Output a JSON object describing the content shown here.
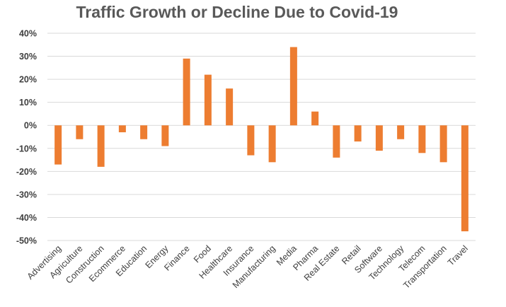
{
  "chart_data": {
    "type": "bar",
    "title": "Traffic Growth or Decline Due to Covid-19",
    "xlabel": "",
    "ylabel": "",
    "categories": [
      "Advertising",
      "Agriculture",
      "Construction",
      "Ecommerce",
      "Education",
      "Energy",
      "Finance",
      "Food",
      "Healthcare",
      "Insurance",
      "Manufacturing",
      "Media",
      "Pharma",
      "Real Estate",
      "Retail",
      "Software",
      "Technology",
      "Telecom",
      "Transportation",
      "Travel"
    ],
    "values": [
      -17,
      -6,
      -18,
      -3,
      -6,
      -9,
      29,
      22,
      16,
      -13,
      -16,
      34,
      6,
      -14,
      -7,
      -11,
      -6,
      -12,
      -16,
      -46
    ],
    "unit": "%",
    "ylim": [
      -50,
      40
    ],
    "yticks": [
      40,
      30,
      20,
      10,
      0,
      -10,
      -20,
      -30,
      -40,
      -50
    ],
    "ytick_labels": [
      "40%",
      "30%",
      "20%",
      "10%",
      "0%",
      "-10%",
      "-20%",
      "-30%",
      "-40%",
      "-50%"
    ],
    "grid": true,
    "legend": "none",
    "colors": {
      "bar": "#ED7D31",
      "grid": "#D9D9D9",
      "text": "#404040",
      "title": "#595959"
    }
  }
}
